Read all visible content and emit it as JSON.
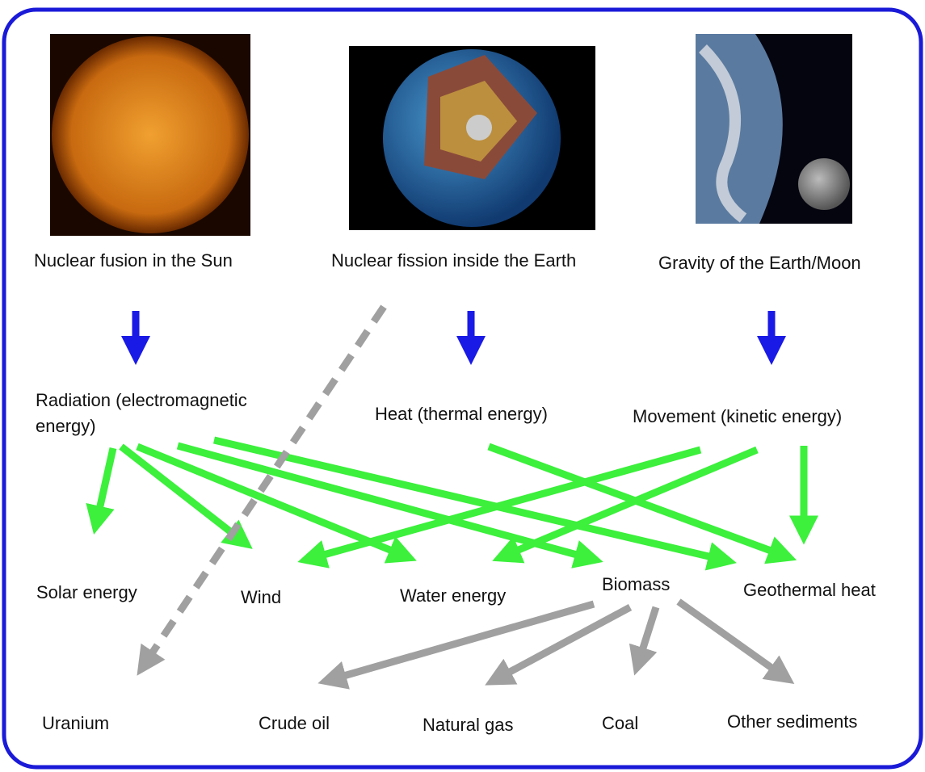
{
  "nodes": [
    {
      "label": "Nuclear fusion in the Sun"
    },
    {
      "label": "Nuclear fission inside the Earth"
    },
    {
      "label": "Gravity of the Earth/Moon"
    },
    {
      "lines": [
        "Radiation (electromagnetic",
        "energy)"
      ]
    },
    {
      "label": "Heat (thermal energy)"
    },
    {
      "label": "Movement (kinetic energy)"
    },
    {
      "label": "Solar energy"
    },
    {
      "label": "Wind"
    },
    {
      "label": "Water energy"
    },
    {
      "label": "Biomass"
    },
    {
      "label": "Geothermal heat"
    },
    {
      "label": "Uranium"
    },
    {
      "label": "Crude oil"
    },
    {
      "label": "Natural gas"
    },
    {
      "label": "Coal"
    },
    {
      "label": "Other sediments"
    }
  ]
}
